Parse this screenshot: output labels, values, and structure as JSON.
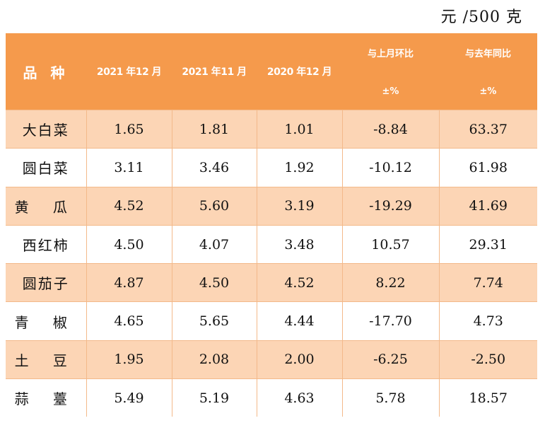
{
  "unit": "元 /500 克",
  "table": {
    "headers": {
      "name": "品 种",
      "col1": "2021 年12 月",
      "col2": "2021 年11 月",
      "col3": "2020 年12 月",
      "col4_line1": "与上月环比",
      "col4_line2": "±%",
      "col5_line1": "与去年同比",
      "col5_line2": "±%"
    },
    "rows": [
      {
        "name": "大白菜",
        "dec2021": "1.65",
        "nov2021": "1.81",
        "dec2020": "1.01",
        "mom": "-8.84",
        "yoy": "63.37"
      },
      {
        "name": "圆白菜",
        "dec2021": "3.11",
        "nov2021": "3.46",
        "dec2020": "1.92",
        "mom": "-10.12",
        "yoy": "61.98"
      },
      {
        "name": "黄 瓜",
        "dec2021": "4.52",
        "nov2021": "5.60",
        "dec2020": "3.19",
        "mom": "-19.29",
        "yoy": "41.69"
      },
      {
        "name": "西红柿",
        "dec2021": "4.50",
        "nov2021": "4.07",
        "dec2020": "3.48",
        "mom": "10.57",
        "yoy": "29.31"
      },
      {
        "name": "圆茄子",
        "dec2021": "4.87",
        "nov2021": "4.50",
        "dec2020": "4.52",
        "mom": "8.22",
        "yoy": "7.74"
      },
      {
        "name": "青 椒",
        "dec2021": "4.65",
        "nov2021": "5.65",
        "dec2020": "4.44",
        "mom": "-17.70",
        "yoy": "4.73"
      },
      {
        "name": "土 豆",
        "dec2021": "1.95",
        "nov2021": "2.08",
        "dec2020": "2.00",
        "mom": "-6.25",
        "yoy": "-2.50"
      },
      {
        "name": "蒜 薹",
        "dec2021": "5.49",
        "nov2021": "5.19",
        "dec2020": "4.63",
        "mom": "5.78",
        "yoy": "18.57"
      }
    ]
  },
  "colors": {
    "header_bg": "#f59a4c",
    "odd_row_bg": "#fcd5b5",
    "even_row_bg": "#ffffff"
  }
}
